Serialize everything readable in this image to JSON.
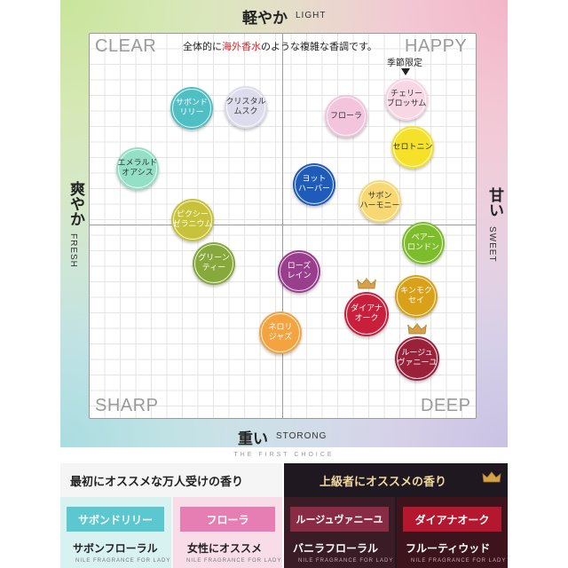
{
  "axes": {
    "top_jp": "軽やか",
    "top_en": "LIGHT",
    "bottom_jp": "重い",
    "bottom_en": "STORONG",
    "left_jp": "爽やか",
    "left_en": "FRESH",
    "right_jp": "甘い",
    "right_en": "SWEET"
  },
  "corners": {
    "top_left": "CLEAR",
    "top_right": "HAPPY",
    "bottom_left": "SHARP",
    "bottom_right": "DEEP"
  },
  "note": {
    "before": "全体的に",
    "highlight": "海外香水",
    "after": "のような複雑な香調です。"
  },
  "seasonal_label": "季節限定",
  "scents": [
    {
      "label": "サボンド\nリリー",
      "color": "#4fbfc4"
    },
    {
      "label": "クリスタル\nムスク",
      "color": "#dcdcec"
    },
    {
      "label": "フローラ",
      "color": "#f3c5dc"
    },
    {
      "label": "チェリー\nブロッサム",
      "color": "#f7d7e3"
    },
    {
      "label": "セロトニン",
      "color": "#f6e12a"
    },
    {
      "label": "エメラルド\nオアシス",
      "color": "#94e0c6"
    },
    {
      "label": "ヨット\nハーバー",
      "color": "#1f5cba"
    },
    {
      "label": "サボン\nハーモニー",
      "color": "#f7d873"
    },
    {
      "label": "ピクシー\nゼラニウム",
      "color": "#c7c23a"
    },
    {
      "label": "ペアー\nロンドン",
      "color": "#7dbd2c"
    },
    {
      "label": "グリーン\nティー",
      "color": "#87a83a"
    },
    {
      "label": "ローズ\nレイン",
      "color": "#993e8c"
    },
    {
      "label": "キンモク\nセイ",
      "color": "#d9a019"
    },
    {
      "label": "ダイアナ\nオーク",
      "color": "#c71f3c"
    },
    {
      "label": "ネロリ\nジャズ",
      "color": "#f4a341"
    },
    {
      "label": "ルージュ\nヴァニーユ",
      "color": "#99213a"
    }
  ],
  "tagline": "THE FIRST CHOICE",
  "bottom": {
    "left_title": "最初にオススメな万人受けの香り",
    "right_title": "上級者にオススメの香り",
    "cards": [
      {
        "chip": "サボンドリリー",
        "chip_color": "#5bc7cf",
        "bg": "#d8f1f1",
        "sub": "サボンフローラル",
        "brand": "NILE FRAGRANCE FOR LADY"
      },
      {
        "chip": "フローラ",
        "chip_color": "#e77eb3",
        "bg": "#f8dde8",
        "sub": "女性にオススメ",
        "brand": "NILE FRAGRANCE FOR LADY"
      },
      {
        "chip": "ルージュヴァニーユ",
        "chip_color": "#8a2b45",
        "bg": "#3a1c26",
        "sub": "バニラフローラル",
        "brand": "NILE FRAGRANCE FOR LADY"
      },
      {
        "chip": "ダイアナオーク",
        "chip_color": "#b5172f",
        "bg": "#3d141c",
        "sub": "フルーティウッド",
        "brand": "NILE FRAGRANCE FOR LADY"
      }
    ]
  },
  "colors": {
    "accent_red": "#d8282c",
    "gold": "#d5a24a"
  }
}
